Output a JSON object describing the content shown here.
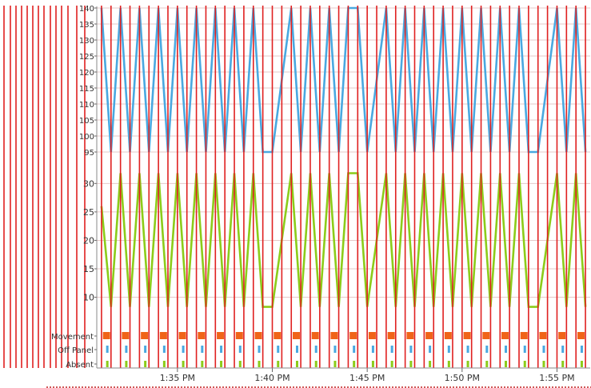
{
  "chart_data": {
    "type": "line",
    "x_axis": {
      "kind": "time",
      "tick_labels": [
        "1:35 PM",
        "1:40 PM",
        "1:45 PM",
        "1:50 PM",
        "1:55 PM"
      ],
      "range_minutes": [
        "1:31 PM",
        "1:56:30 PM"
      ]
    },
    "panels": [
      {
        "name": "",
        "type": "line",
        "color": "#4aa8e0",
        "ylim": [
          93,
          140
        ],
        "yticks": [
          95,
          100,
          105,
          110,
          115,
          120,
          125,
          130,
          135,
          140
        ],
        "x_minutes": [
          0,
          0.5,
          1,
          1.5,
          2,
          2.5,
          3,
          3.5,
          4,
          4.5,
          5,
          5.5,
          6,
          6.5,
          7,
          7.5,
          8,
          8.5,
          9,
          10,
          10.5,
          11,
          11.5,
          12,
          12.5,
          13,
          13.5,
          14,
          15,
          15.5,
          16,
          16.5,
          17,
          17.5,
          18,
          18.5,
          19,
          19.5,
          20,
          20.5,
          21,
          21.5,
          22,
          22.5,
          23,
          24,
          24.5,
          25,
          25.5
        ],
        "values": [
          140,
          95,
          140,
          95,
          140,
          95,
          140,
          95,
          140,
          95,
          140,
          95,
          140,
          95,
          140,
          95,
          140,
          95,
          95,
          140,
          95,
          140,
          95,
          140,
          95,
          140,
          140,
          95,
          140,
          95,
          140,
          95,
          140,
          95,
          140,
          95,
          140,
          95,
          140,
          95,
          140,
          95,
          140,
          95,
          95,
          140,
          95,
          140,
          95
        ]
      },
      {
        "name": "",
        "type": "line",
        "color": "#8ccc1a",
        "ylim": [
          6,
          33
        ],
        "yticks": [
          10,
          15,
          20,
          25,
          30
        ],
        "x_minutes": [
          0,
          0.5,
          1,
          1.5,
          2,
          2.5,
          3,
          3.5,
          4,
          4.5,
          5,
          5.5,
          6,
          6.5,
          7,
          7.5,
          8,
          8.5,
          9,
          10,
          10.5,
          11,
          11.5,
          12,
          12.5,
          13,
          13.5,
          14,
          15,
          15.5,
          16,
          16.5,
          17,
          17.5,
          18,
          18.5,
          19,
          19.5,
          20,
          20.5,
          21,
          21.5,
          22,
          22.5,
          23,
          24,
          24.5,
          25,
          25.5
        ],
        "values": [
          26,
          8.3,
          31.8,
          8.3,
          31.8,
          8.3,
          31.8,
          8.3,
          31.8,
          8.3,
          31.8,
          8.3,
          31.8,
          8.3,
          31.8,
          8.3,
          31.8,
          8.3,
          8.3,
          31.8,
          8.3,
          31.8,
          8.3,
          31.8,
          8.3,
          31.8,
          31.8,
          8.3,
          31.8,
          8.3,
          31.8,
          8.3,
          31.8,
          8.3,
          31.8,
          8.3,
          31.8,
          8.3,
          31.8,
          8.3,
          31.8,
          8.3,
          31.8,
          8.3,
          8.3,
          31.8,
          8.3,
          31.8,
          8.3
        ]
      },
      {
        "name": "",
        "type": "event-strip",
        "categories": [
          "Movement",
          "Off Panel",
          "Absent"
        ],
        "colors": [
          "#f06418",
          "#4aa8e0",
          "#8ccc1a"
        ],
        "event_period_minutes": 1,
        "event_start_minute": 0.2
      }
    ],
    "vertical_markers": {
      "color": "#e02020",
      "period_minutes": 0.5,
      "extends_left_of_axis": true
    },
    "grid": true
  }
}
